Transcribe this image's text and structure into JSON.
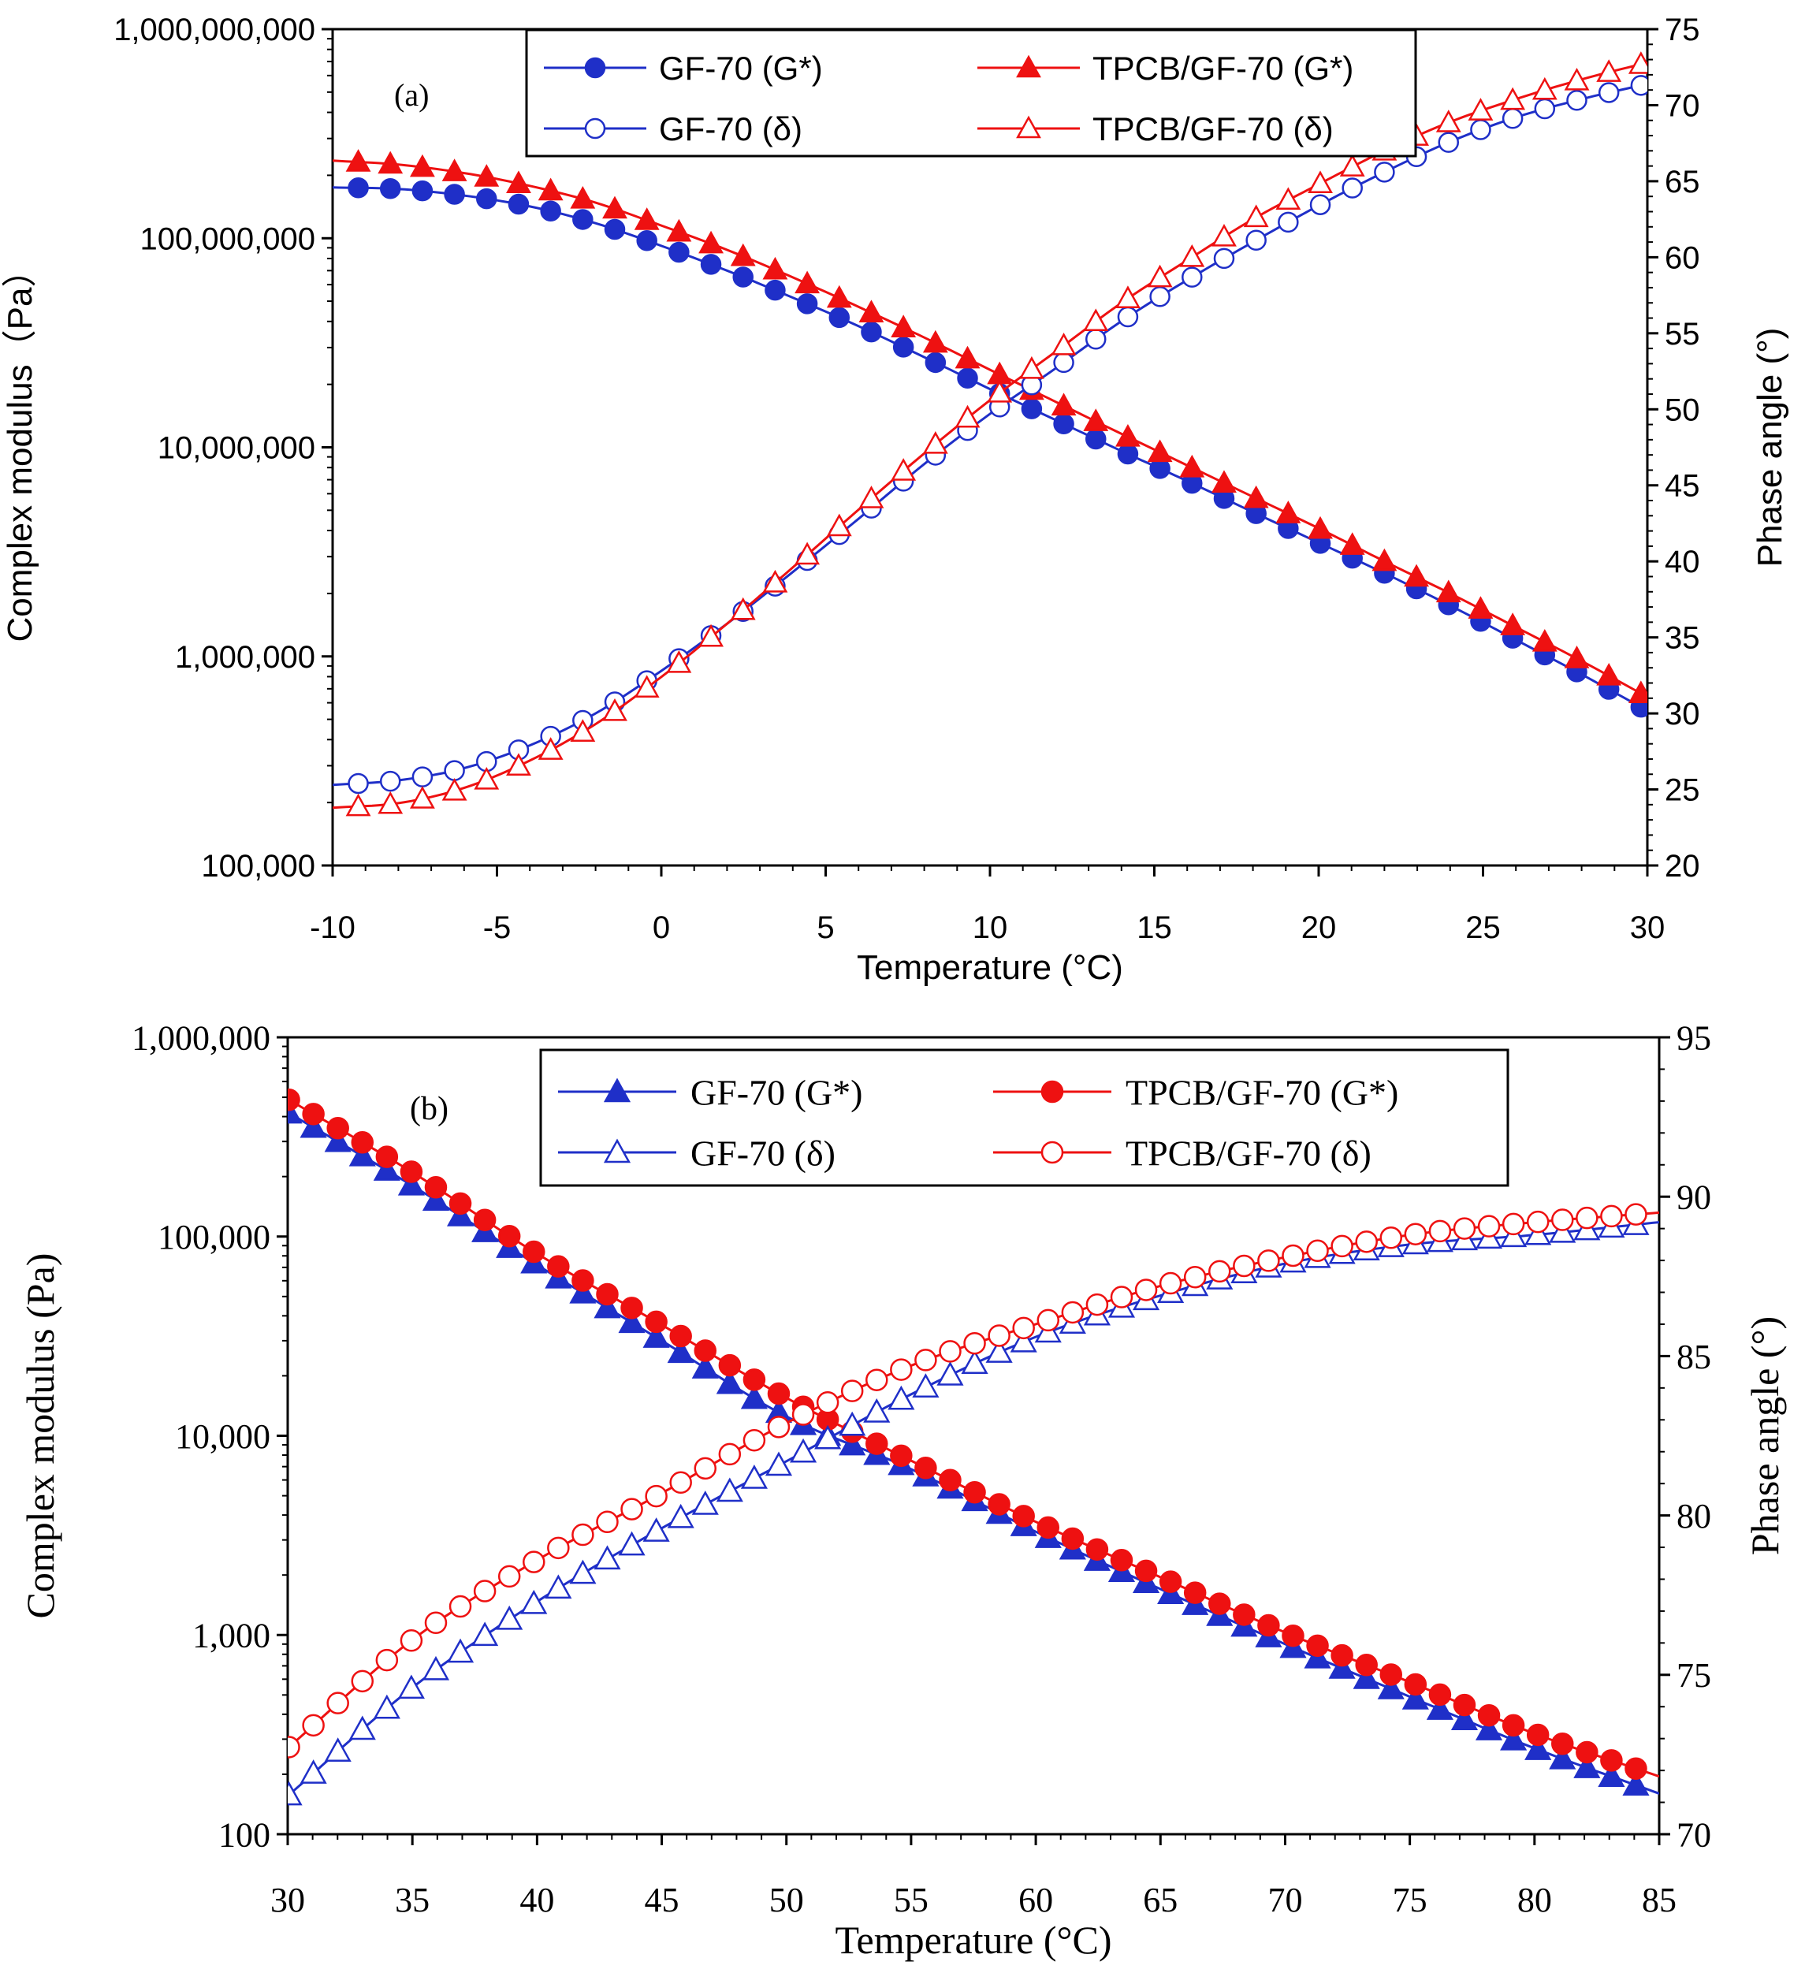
{
  "chart_data": [
    {
      "panel": "a",
      "type": "line",
      "panel_label": "(a)",
      "xlabel": "Temperature (°C)",
      "ylabel_left": "Complex modulus（Pa）",
      "ylabel_right": "Phase angle (°)",
      "xlim": [
        -10,
        30
      ],
      "ylim_left": [
        100000,
        1000000000
      ],
      "ylim_right": [
        20,
        75
      ],
      "y_left_scale": "log",
      "x_ticks": [
        "-10",
        "-5",
        "0",
        "5",
        "10",
        "15",
        "20",
        "25",
        "30"
      ],
      "y_left_ticks": [
        "100,000",
        "1,000,000",
        "10,000,000",
        "100,000,000",
        "1,000,000,000"
      ],
      "y_right_ticks": [
        "20",
        "25",
        "30",
        "35",
        "40",
        "45",
        "50",
        "55",
        "60",
        "65",
        "70",
        "75"
      ],
      "legend_position": "top",
      "sample_points": 41,
      "series": [
        {
          "name": "GF-70 (G*)",
          "axis": "left",
          "color": "#1f2fc8",
          "marker": "filled-circle",
          "x": [
            -10,
            -8,
            -6,
            -4,
            -2,
            0,
            2,
            4,
            6,
            8,
            10,
            12,
            14,
            16,
            18,
            20,
            22,
            24,
            26,
            28,
            30
          ],
          "y": [
            175000000,
            172000000,
            160000000,
            142000000,
            118000000,
            92000000,
            70000000,
            52000000,
            38000000,
            27000000,
            19000000,
            13500000,
            9600000,
            6900000,
            4900000,
            3500000,
            2500000,
            1750000,
            1200000,
            820000,
            550000
          ]
        },
        {
          "name": "TPCB/GF-70 (G*)",
          "axis": "left",
          "color": "#ee1111",
          "marker": "filled-triangle",
          "x": [
            -10,
            -8,
            -6,
            -4,
            -2,
            0,
            2,
            4,
            6,
            8,
            10,
            12,
            14,
            16,
            18,
            20,
            22,
            24,
            26,
            28,
            30
          ],
          "y": [
            235000000,
            225000000,
            205000000,
            178000000,
            148000000,
            115000000,
            88000000,
            65000000,
            47000000,
            33500000,
            23500000,
            16500000,
            11600000,
            8200000,
            5800000,
            4100000,
            2850000,
            2000000,
            1380000,
            950000,
            640000
          ]
        },
        {
          "name": "GF-70 (δ)",
          "axis": "right",
          "color": "#1f2fc8",
          "marker": "open-circle",
          "x": [
            -10,
            -8,
            -6,
            -4,
            -2,
            0,
            2,
            4,
            6,
            8,
            10,
            12,
            14,
            16,
            18,
            20,
            22,
            24,
            26,
            28,
            30
          ],
          "y": [
            25.3,
            25.6,
            26.4,
            27.9,
            30.0,
            32.8,
            35.9,
            39.3,
            42.8,
            46.4,
            49.7,
            52.7,
            55.8,
            58.5,
            61.0,
            63.4,
            65.6,
            67.6,
            69.2,
            70.4,
            71.4
          ]
        },
        {
          "name": "TPCB/GF-70 (δ)",
          "axis": "right",
          "color": "#ee1111",
          "marker": "open-triangle",
          "x": [
            -10,
            -8,
            -6,
            -4,
            -2,
            0,
            2,
            4,
            6,
            8,
            10,
            12,
            14,
            16,
            18,
            20,
            22,
            24,
            26,
            28,
            30
          ],
          "y": [
            23.8,
            24.1,
            25.1,
            26.9,
            29.3,
            32.4,
            35.9,
            39.6,
            43.4,
            47.1,
            50.6,
            53.8,
            57.0,
            59.8,
            62.5,
            64.8,
            67.0,
            68.9,
            70.4,
            71.7,
            72.8
          ]
        }
      ],
      "legend": [
        {
          "label": "GF-70 (G*)",
          "series": 0
        },
        {
          "label": "TPCB/GF-70 (G*)",
          "series": 1
        },
        {
          "label": "GF-70 (δ)",
          "series": 2
        },
        {
          "label": "TPCB/GF-70 (δ)",
          "series": 3
        }
      ]
    },
    {
      "panel": "b",
      "type": "line",
      "panel_label": "(b)",
      "xlabel": "Temperature (°C)",
      "ylabel_left": "Complex modulus (Pa)",
      "ylabel_right": "Phase angle (°)",
      "xlim": [
        30,
        85
      ],
      "ylim_left": [
        100,
        1000000
      ],
      "ylim_right": [
        70,
        95
      ],
      "y_left_scale": "log",
      "x_ticks": [
        "30",
        "35",
        "40",
        "45",
        "50",
        "55",
        "60",
        "65",
        "70",
        "75",
        "80",
        "85"
      ],
      "y_left_ticks": [
        "100",
        "1,000",
        "10,000",
        "100,000",
        "1,000,000"
      ],
      "y_right_ticks": [
        "70",
        "75",
        "80",
        "85",
        "90",
        "95"
      ],
      "legend_position": "top",
      "sample_points": 56,
      "series": [
        {
          "name": "GF-70 (G*)",
          "axis": "left",
          "color": "#1f2fc8",
          "marker": "filled-triangle",
          "x": [
            30,
            35,
            40,
            45,
            50,
            55,
            60,
            65,
            70,
            75,
            80,
            85
          ],
          "y": [
            420000,
            180000,
            72000,
            30000,
            12500,
            6800,
            3300,
            1700,
            900,
            490,
            270,
            160
          ]
        },
        {
          "name": "TPCB/GF-70 (G*)",
          "axis": "left",
          "color": "#ee1111",
          "marker": "filled-circle",
          "x": [
            30,
            35,
            40,
            45,
            50,
            55,
            60,
            65,
            70,
            75,
            80,
            85
          ],
          "y": [
            490000,
            210000,
            82000,
            36000,
            15500,
            7500,
            3700,
            1950,
            1030,
            580,
            320,
            195
          ]
        },
        {
          "name": "GF-70 (δ)",
          "axis": "right",
          "color": "#1f2fc8",
          "marker": "open-triangle",
          "x": [
            30,
            35,
            40,
            45,
            50,
            55,
            60,
            65,
            70,
            75,
            80,
            85
          ],
          "y": [
            71.2,
            74.6,
            77.3,
            79.6,
            81.7,
            83.8,
            85.6,
            86.9,
            87.9,
            88.5,
            88.8,
            89.2
          ]
        },
        {
          "name": "TPCB/GF-70 (δ)",
          "axis": "right",
          "color": "#ee1111",
          "marker": "open-circle",
          "x": [
            30,
            35,
            40,
            45,
            50,
            55,
            60,
            65,
            70,
            75,
            80,
            85
          ],
          "y": [
            72.7,
            76.1,
            78.6,
            80.7,
            82.9,
            84.7,
            86.0,
            87.2,
            88.1,
            88.8,
            89.2,
            89.5
          ]
        }
      ],
      "legend": [
        {
          "label": "GF-70 (G*)",
          "series": 0
        },
        {
          "label": "TPCB/GF-70 (G*)",
          "series": 1
        },
        {
          "label": "GF-70 (δ)",
          "series": 2
        },
        {
          "label": "TPCB/GF-70 (δ)",
          "series": 3
        }
      ]
    }
  ]
}
